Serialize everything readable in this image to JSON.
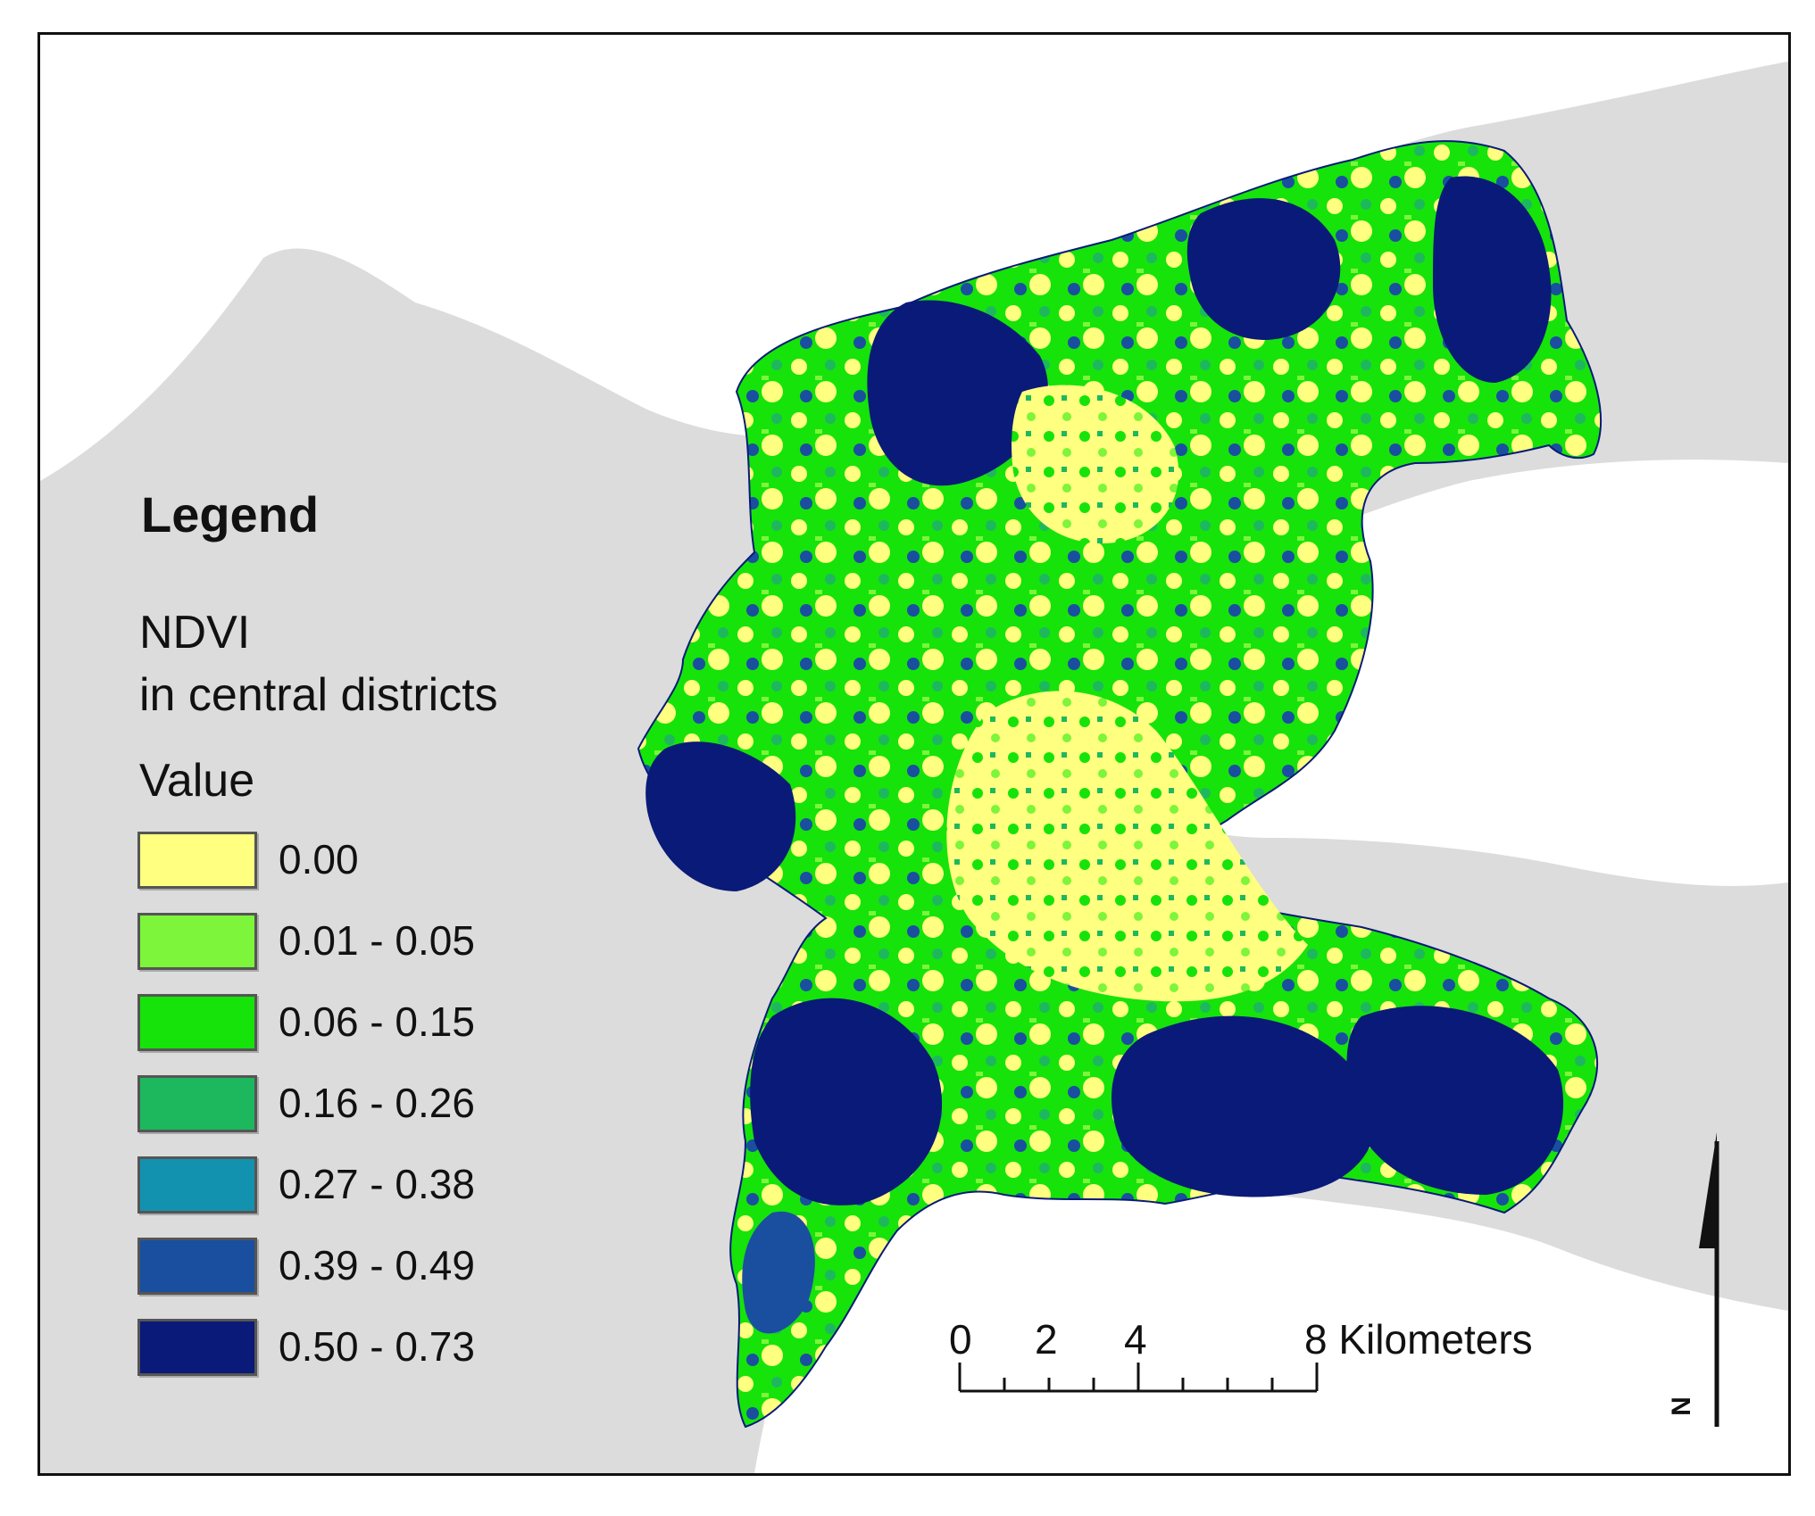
{
  "legend": {
    "title": "Legend",
    "layer_title_line1": "NDVI",
    "layer_title_line2": "in central districts",
    "field": "Value",
    "classes": [
      {
        "label": "0.00",
        "color": "#ffff80"
      },
      {
        "label": "0.01 - 0.05",
        "color": "#7cf53a"
      },
      {
        "label": "0.06 - 0.15",
        "color": "#16e30a"
      },
      {
        "label": "0.16 - 0.26",
        "color": "#1db85e"
      },
      {
        "label": "0.27 - 0.38",
        "color": "#1292ae"
      },
      {
        "label": "0.39 - 0.49",
        "color": "#1a4fa0"
      },
      {
        "label": "0.50 - 0.73",
        "color": "#0a1a78"
      }
    ]
  },
  "scale_bar": {
    "labels": [
      "0",
      "2",
      "4",
      "8 Kilometers"
    ],
    "ticks_km": [
      0,
      1,
      2,
      3,
      4,
      5,
      6,
      7,
      8
    ]
  },
  "north_arrow": {
    "label": "N"
  },
  "colors": {
    "background_land": "#dcdcdc",
    "water": "#ffffff",
    "frame": "#111111"
  }
}
